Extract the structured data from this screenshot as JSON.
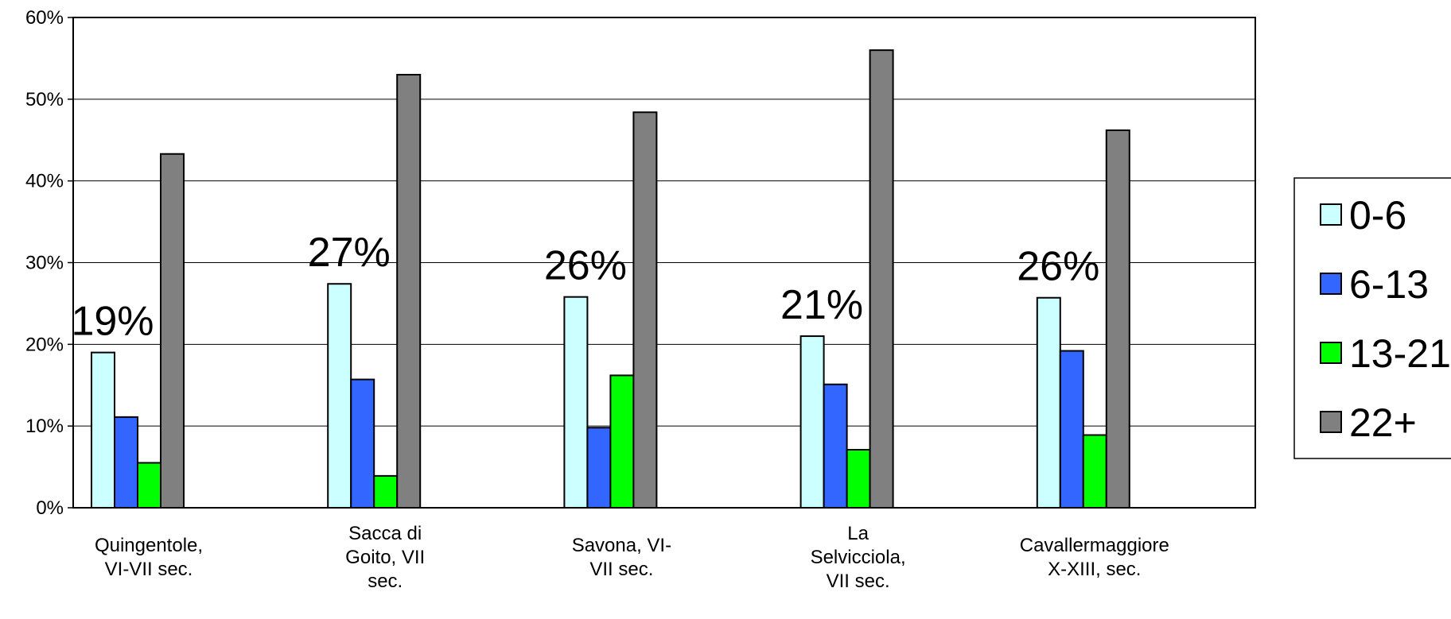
{
  "chart_data": {
    "type": "bar",
    "categories": [
      [
        "Quingentole,",
        "VI-VII sec."
      ],
      [
        "Sacca di",
        "Goito, VII",
        "sec."
      ],
      [
        "Savona, VI-",
        "VII sec."
      ],
      [
        "La",
        "Selvicciola,",
        "VII sec."
      ],
      [
        "Cavallermaggiore",
        "X-XIII, sec."
      ]
    ],
    "series": [
      {
        "name": "0-6",
        "values": [
          19,
          27.4,
          25.8,
          21,
          25.7
        ],
        "color": "#ccffff"
      },
      {
        "name": "6-13",
        "values": [
          11.1,
          15.7,
          9.8,
          15.1,
          19.2
        ],
        "color": "#3366ff"
      },
      {
        "name": "13-21",
        "values": [
          5.5,
          3.9,
          16.2,
          7.1,
          8.9
        ],
        "color": "#00ff00"
      },
      {
        "name": "22+",
        "values": [
          43.3,
          53,
          48.4,
          56,
          46.2
        ],
        "color": "#808080"
      }
    ],
    "annotations": [
      "19%",
      "27%",
      "26%",
      "21%",
      "26%"
    ],
    "ylim": [
      0,
      60
    ],
    "yticks": [
      "0%",
      "10%",
      "20%",
      "30%",
      "40%",
      "50%",
      "60%"
    ],
    "grid": true,
    "legend_position": "right"
  }
}
